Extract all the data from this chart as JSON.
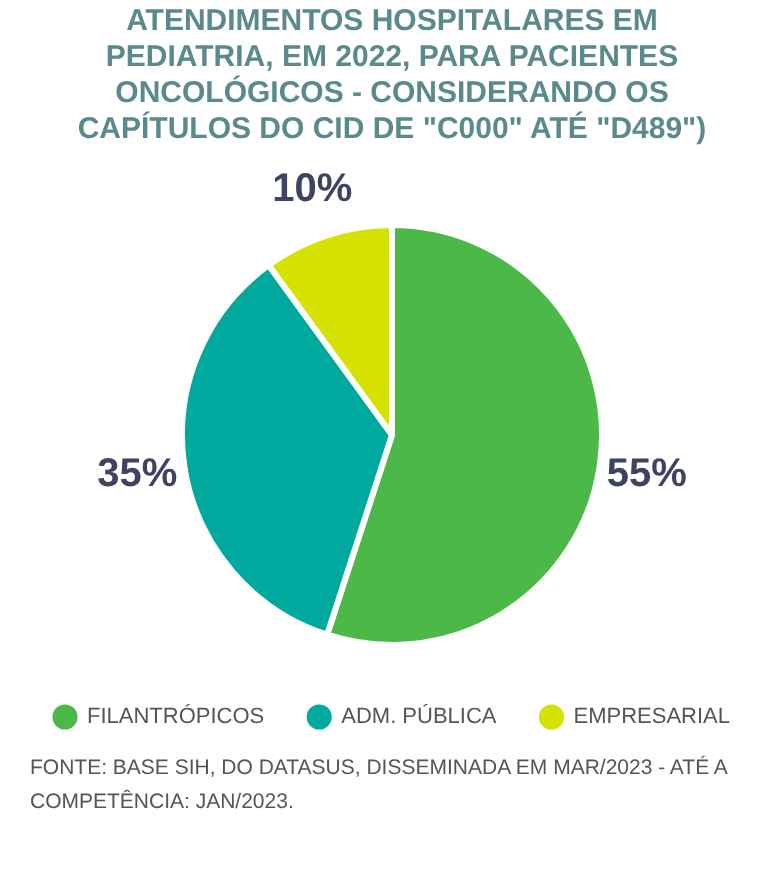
{
  "chart_data": {
    "type": "pie",
    "title": "ATENDIMENTOS HOSPITALARES EM PEDIATRIA, EM 2022, PARA PACIENTES ONCOLÓGICOS - CONSIDERANDO OS CAPÍTULOS DO CID DE \"C000\" ATÉ \"D489\")",
    "categories": [
      "FILANTRÓPICOS",
      "ADM. PÚBLICA",
      "EMPRESARIAL"
    ],
    "values": [
      55,
      35,
      10
    ],
    "colors": [
      "#4cb848",
      "#00a99d",
      "#d5e100"
    ],
    "value_labels": [
      "55%",
      "35%",
      "10%"
    ],
    "legend": "bottom",
    "annotations": [
      "FONTE: BASE SIH, DO DATASUS, DISSEMINADA EM MAR/2023 - ATÉ A COMPETÊNCIA: JAN/2023."
    ]
  }
}
